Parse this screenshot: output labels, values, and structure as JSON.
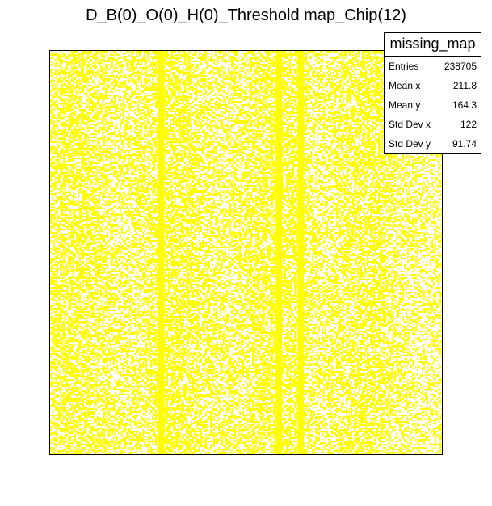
{
  "chart_data": {
    "type": "heatmap",
    "title": "D_B(0)_O(0)_H(0)_Threshold map_Chip(12)",
    "histogram_name": "missing_map",
    "xlabel": "",
    "ylabel": "",
    "xlim": [
      0,
      448
    ],
    "ylim": [
      0,
      512
    ],
    "fill_color": "#ffff00",
    "fill_fraction": 0.55,
    "full_columns": [
      {
        "x_start": 123,
        "x_end": 130
      },
      {
        "x_start": 257,
        "x_end": 264
      },
      {
        "x_start": 282,
        "x_end": 289
      }
    ],
    "stats": [
      {
        "label": "Entries",
        "value": "238705"
      },
      {
        "label": "Mean x",
        "value": "211.8"
      },
      {
        "label": "Mean y",
        "value": "164.3"
      },
      {
        "label": "Std Dev x",
        "value": "122"
      },
      {
        "label": "Std Dev y",
        "value": "91.74"
      }
    ]
  }
}
